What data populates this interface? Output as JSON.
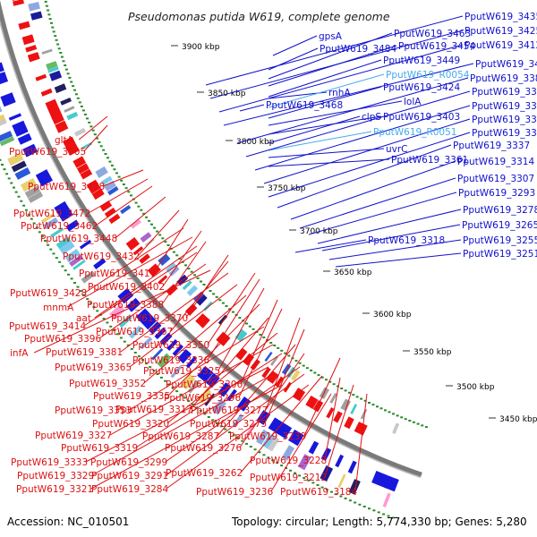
{
  "title": "Pseudomonas putida W619, complete genome",
  "footer": {
    "accession": "Accession: NC_010501",
    "topology": "Topology: circular; Length: 5,774,330 bp; Genes: 5,280"
  },
  "colors": {
    "forward_label": "#1010cc",
    "reverse_label": "#dd1111",
    "rna_label": "#44aaee",
    "backbone": "#7a7a7a",
    "gc_dots": "#2a8a2a"
  },
  "ticks": [
    "3900 kbp",
    "3850 kbp",
    "3800 kbp",
    "3750 kbp",
    "3700 kbp",
    "3650 kbp",
    "3600 kbp",
    "3550 kbp",
    "3500 kbp",
    "3450 kbp"
  ],
  "right_labels": [
    {
      "t": "gpsA",
      "c": "f"
    },
    {
      "t": "PputW619_3484",
      "c": "f"
    },
    {
      "t": "rnhA",
      "c": "f"
    },
    {
      "t": "PputW619_3468",
      "c": "f"
    },
    {
      "t": "PputW619_3463",
      "c": "f"
    },
    {
      "t": "PputW619_3454",
      "c": "f"
    },
    {
      "t": "PputW619_3449",
      "c": "f"
    },
    {
      "t": "PputW619_R0054",
      "c": "r"
    },
    {
      "t": "PputW619_3424",
      "c": "f"
    },
    {
      "t": "lolA",
      "c": "f"
    },
    {
      "t": "PputW619_3403",
      "c": "f"
    },
    {
      "t": "clpS",
      "c": "f"
    },
    {
      "t": "PputW619_R0051",
      "c": "r"
    },
    {
      "t": "uvrC",
      "c": "f"
    },
    {
      "t": "PputW619_3361",
      "c": "f"
    },
    {
      "t": "PputW619_3318",
      "c": "f"
    },
    {
      "t": "PputW619_3435",
      "c": "f"
    },
    {
      "t": "PputW619_3425",
      "c": "f"
    },
    {
      "t": "PputW619_3412",
      "c": "f"
    },
    {
      "t": "PputW619_3404",
      "c": "f"
    },
    {
      "t": "PputW619_3383",
      "c": "f"
    },
    {
      "t": "PputW619_3371",
      "c": "f"
    },
    {
      "t": "PputW619_3356",
      "c": "f"
    },
    {
      "t": "PputW619_3346",
      "c": "f"
    },
    {
      "t": "PputW619_3338",
      "c": "f"
    },
    {
      "t": "PputW619_3337",
      "c": "f"
    },
    {
      "t": "PputW619_3314",
      "c": "f"
    },
    {
      "t": "PputW619_3307",
      "c": "f"
    },
    {
      "t": "PputW619_3293",
      "c": "f"
    },
    {
      "t": "PputW619_3278",
      "c": "f"
    },
    {
      "t": "PputW619_3265",
      "c": "f"
    },
    {
      "t": "PputW619_3255",
      "c": "f"
    },
    {
      "t": "PputW619_3251",
      "c": "f"
    }
  ],
  "left_labels": [
    "gltA",
    "PputW619_3505",
    "PputW619_3478",
    "PputW619_3472",
    "PputW619_3462",
    "PputW619_3448",
    "PputW619_3432",
    "PputW619_3417",
    "PputW619_3428",
    "PputW619_3402",
    "mnmA",
    "PputW619_3388",
    "aat",
    "PputW619_3414",
    "PputW619_3370",
    "PputW619_3367",
    "PputW619_3396",
    "infA",
    "PputW619_3381",
    "PputW619_3350",
    "PputW619_3336",
    "PputW619_3365",
    "PputW619_3325",
    "PputW619_3352",
    "PputW619_3306",
    "PputW619_3335",
    "PputW619_3296",
    "PputW619_3317",
    "PputW619_3277",
    "PputW619_3353",
    "PputW619_3320",
    "PputW619_3275",
    "PputW619_3327",
    "PputW619_3287",
    "PputW619_3319",
    "PputW619_3276",
    "PputW619_3239",
    "PputW619_3333",
    "PputW619_3299",
    "PputW619_3329",
    "PputW619_3291",
    "PputW619_3262",
    "PputW619_3228",
    "PputW619_3321",
    "PputW619_3284",
    "PputW619_3212",
    "PputW619_3236",
    "PputW619_3184"
  ]
}
